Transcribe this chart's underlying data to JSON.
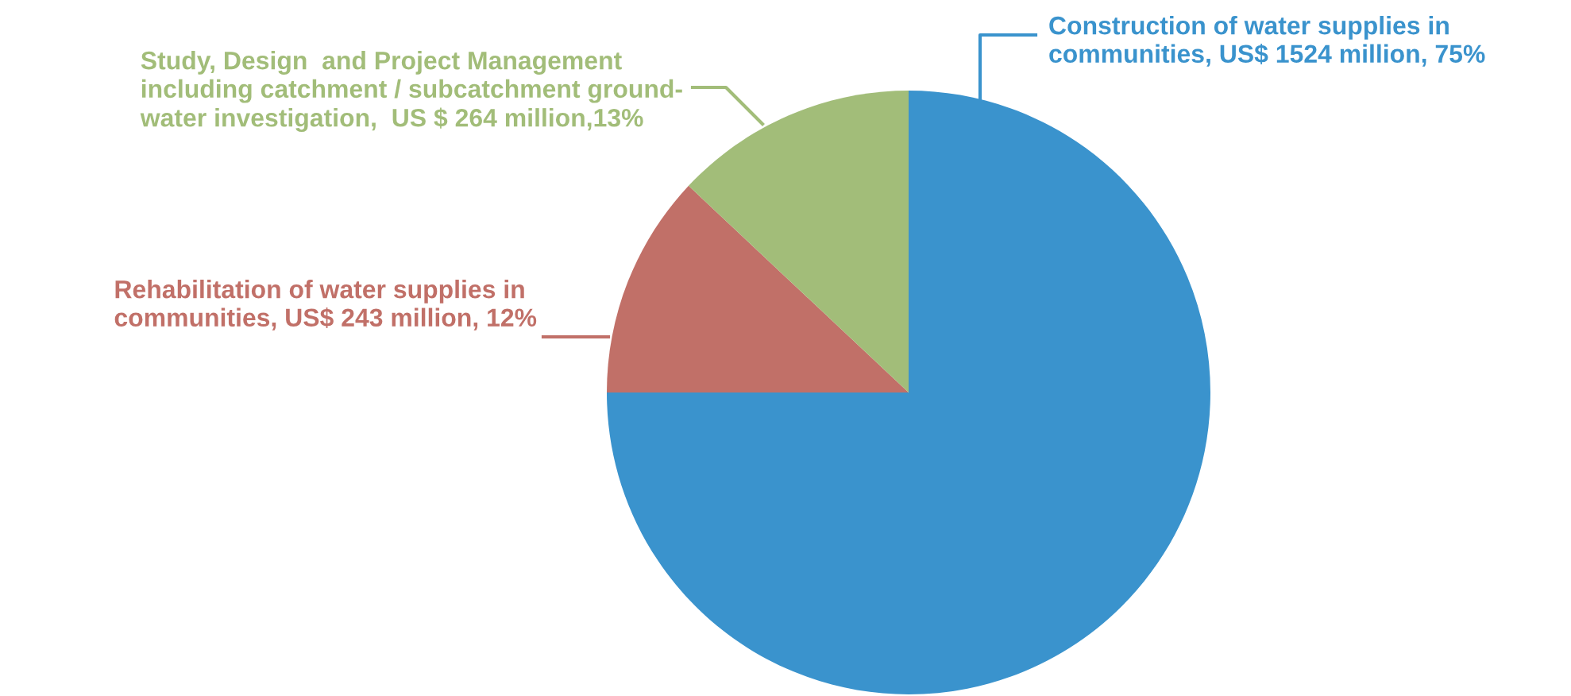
{
  "chart_data": {
    "type": "pie",
    "categories": [
      "Construction of water supplies in\ncommunities, US$ 1524 million, 75%",
      "Rehabilitation of water supplies in\ncommunities, US$ 243 million, 12%",
      "Study, Design  and Project Management\nincluding catchment / subcatchment ground-\nwater investigation,  US $ 264 million,13%"
    ],
    "values": [
      75,
      12,
      13
    ],
    "colors": [
      "#3a93cd",
      "#c17068",
      "#a2bd79"
    ],
    "legend": false
  }
}
